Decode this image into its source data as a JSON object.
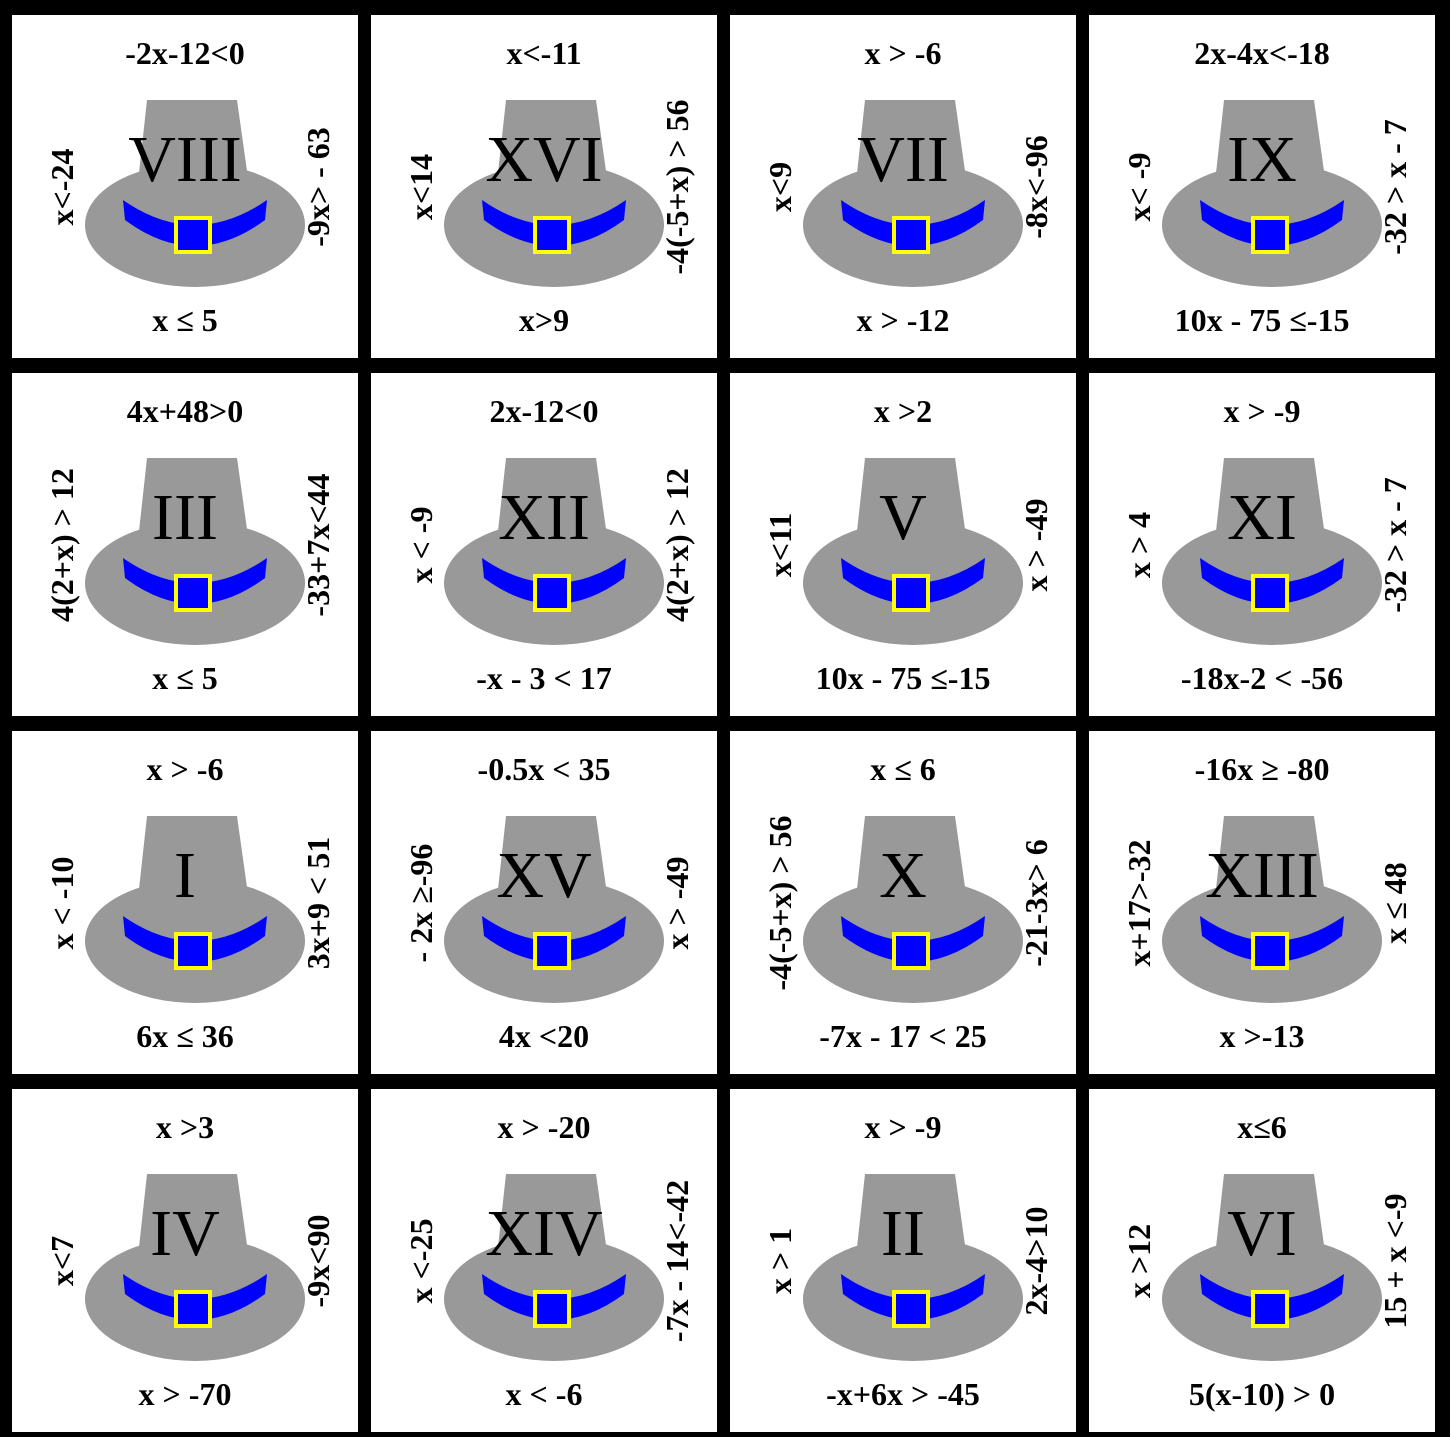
{
  "colors": {
    "hat": "#999999",
    "band": "#0000ff",
    "buckle": "#ffff00",
    "background": "#ffffff",
    "grid": "#000000"
  },
  "tiles": [
    {
      "numeral": "VIII",
      "top": "-2x-12<0",
      "bottom": "x ≤ 5",
      "left": "x<-24",
      "right": "-9x> - 63"
    },
    {
      "numeral": "XVI",
      "top": "x<-11",
      "bottom": "x>9",
      "left": "x<14",
      "right": "-4(-5+x) > 56"
    },
    {
      "numeral": "VII",
      "top": "x > -6",
      "bottom": "x > -12",
      "left": "x<9",
      "right": "-8x<-96"
    },
    {
      "numeral": "IX",
      "top": "2x-4x<-18",
      "bottom": "10x - 75 ≤-15",
      "left": "x< -9",
      "right": "-32 > x - 7"
    },
    {
      "numeral": "III",
      "top": "4x+48>0",
      "bottom": "x ≤ 5",
      "left": "4(2+x) > 12",
      "right": "-33+7x<44"
    },
    {
      "numeral": "XII",
      "top": "2x-12<0",
      "bottom": "-x - 3 < 17",
      "left": "x < -9",
      "right": "4(2+x) > 12"
    },
    {
      "numeral": "V",
      "top": "x >2",
      "bottom": "10x - 75 ≤-15",
      "left": "x<11",
      "right": "x > -49"
    },
    {
      "numeral": "XI",
      "top": "x > -9",
      "bottom": "-18x-2 < -56",
      "left": "x > 4",
      "right": "-32 > x - 7"
    },
    {
      "numeral": "I",
      "top": "x > -6",
      "bottom": "6x ≤ 36",
      "left": "x < -10",
      "right": "3x+9 < 51"
    },
    {
      "numeral": "XV",
      "top": "-0.5x < 35",
      "bottom": "4x <20",
      "left": "- 2x ≥-96",
      "right": "x > -49"
    },
    {
      "numeral": "X",
      "top": "x ≤ 6",
      "bottom": "-7x - 17 < 25",
      "left": "-4(-5+x) > 56",
      "right": "-21-3x> 6"
    },
    {
      "numeral": "XIII",
      "top": "-16x ≥ -80",
      "bottom": "x >-13",
      "left": "x+17>-32",
      "right": "x ≤ 48"
    },
    {
      "numeral": "IV",
      "top": "x >3",
      "bottom": "x > -70",
      "left": "x<7",
      "right": "-9x<90"
    },
    {
      "numeral": "XIV",
      "top": "x > -20",
      "bottom": "x < -6",
      "left": "x <-25",
      "right": "-7x - 14<-42"
    },
    {
      "numeral": "II",
      "top": "x > -9",
      "bottom": "-x+6x > -45",
      "left": "x > 1",
      "right": "2x-4>10"
    },
    {
      "numeral": "VI",
      "top": "x≤6",
      "bottom": "5(x-10) > 0",
      "left": "x >12",
      "right": "15 + x <-9"
    }
  ]
}
